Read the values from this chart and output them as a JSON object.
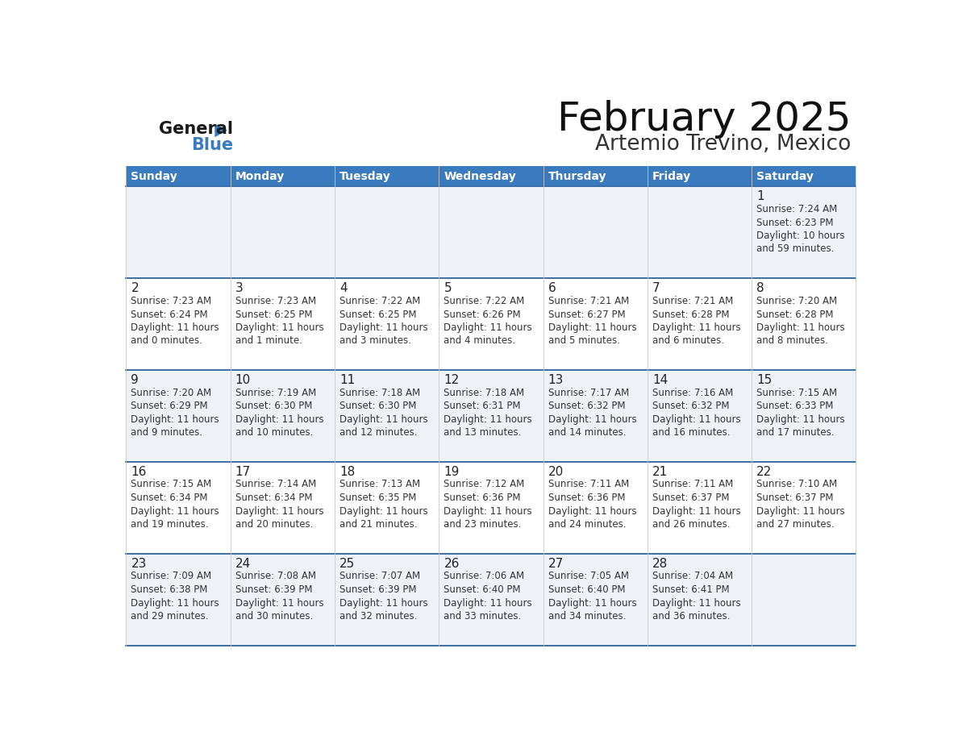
{
  "title": "February 2025",
  "subtitle": "Artemio Trevino, Mexico",
  "header_color": "#3a7abf",
  "header_text_color": "#ffffff",
  "row_bg_colors": [
    "#edf2f7",
    "#ffffff",
    "#edf2f7",
    "#ffffff",
    "#edf2f7"
  ],
  "border_color": "#3a6ea5",
  "day_headers": [
    "Sunday",
    "Monday",
    "Tuesday",
    "Wednesday",
    "Thursday",
    "Friday",
    "Saturday"
  ],
  "days": [
    {
      "day": 1,
      "col": 6,
      "row": 0,
      "sunrise": "7:24 AM",
      "sunset": "6:23 PM",
      "daylight_hrs": "10",
      "daylight_min": "59 minutes."
    },
    {
      "day": 2,
      "col": 0,
      "row": 1,
      "sunrise": "7:23 AM",
      "sunset": "6:24 PM",
      "daylight_hrs": "11",
      "daylight_min": "0 minutes."
    },
    {
      "day": 3,
      "col": 1,
      "row": 1,
      "sunrise": "7:23 AM",
      "sunset": "6:25 PM",
      "daylight_hrs": "11",
      "daylight_min": "1 minute."
    },
    {
      "day": 4,
      "col": 2,
      "row": 1,
      "sunrise": "7:22 AM",
      "sunset": "6:25 PM",
      "daylight_hrs": "11",
      "daylight_min": "3 minutes."
    },
    {
      "day": 5,
      "col": 3,
      "row": 1,
      "sunrise": "7:22 AM",
      "sunset": "6:26 PM",
      "daylight_hrs": "11",
      "daylight_min": "4 minutes."
    },
    {
      "day": 6,
      "col": 4,
      "row": 1,
      "sunrise": "7:21 AM",
      "sunset": "6:27 PM",
      "daylight_hrs": "11",
      "daylight_min": "5 minutes."
    },
    {
      "day": 7,
      "col": 5,
      "row": 1,
      "sunrise": "7:21 AM",
      "sunset": "6:28 PM",
      "daylight_hrs": "11",
      "daylight_min": "6 minutes."
    },
    {
      "day": 8,
      "col": 6,
      "row": 1,
      "sunrise": "7:20 AM",
      "sunset": "6:28 PM",
      "daylight_hrs": "11",
      "daylight_min": "8 minutes."
    },
    {
      "day": 9,
      "col": 0,
      "row": 2,
      "sunrise": "7:20 AM",
      "sunset": "6:29 PM",
      "daylight_hrs": "11",
      "daylight_min": "9 minutes."
    },
    {
      "day": 10,
      "col": 1,
      "row": 2,
      "sunrise": "7:19 AM",
      "sunset": "6:30 PM",
      "daylight_hrs": "11",
      "daylight_min": "10 minutes."
    },
    {
      "day": 11,
      "col": 2,
      "row": 2,
      "sunrise": "7:18 AM",
      "sunset": "6:30 PM",
      "daylight_hrs": "11",
      "daylight_min": "12 minutes."
    },
    {
      "day": 12,
      "col": 3,
      "row": 2,
      "sunrise": "7:18 AM",
      "sunset": "6:31 PM",
      "daylight_hrs": "11",
      "daylight_min": "13 minutes."
    },
    {
      "day": 13,
      "col": 4,
      "row": 2,
      "sunrise": "7:17 AM",
      "sunset": "6:32 PM",
      "daylight_hrs": "11",
      "daylight_min": "14 minutes."
    },
    {
      "day": 14,
      "col": 5,
      "row": 2,
      "sunrise": "7:16 AM",
      "sunset": "6:32 PM",
      "daylight_hrs": "11",
      "daylight_min": "16 minutes."
    },
    {
      "day": 15,
      "col": 6,
      "row": 2,
      "sunrise": "7:15 AM",
      "sunset": "6:33 PM",
      "daylight_hrs": "11",
      "daylight_min": "17 minutes."
    },
    {
      "day": 16,
      "col": 0,
      "row": 3,
      "sunrise": "7:15 AM",
      "sunset": "6:34 PM",
      "daylight_hrs": "11",
      "daylight_min": "19 minutes."
    },
    {
      "day": 17,
      "col": 1,
      "row": 3,
      "sunrise": "7:14 AM",
      "sunset": "6:34 PM",
      "daylight_hrs": "11",
      "daylight_min": "20 minutes."
    },
    {
      "day": 18,
      "col": 2,
      "row": 3,
      "sunrise": "7:13 AM",
      "sunset": "6:35 PM",
      "daylight_hrs": "11",
      "daylight_min": "21 minutes."
    },
    {
      "day": 19,
      "col": 3,
      "row": 3,
      "sunrise": "7:12 AM",
      "sunset": "6:36 PM",
      "daylight_hrs": "11",
      "daylight_min": "23 minutes."
    },
    {
      "day": 20,
      "col": 4,
      "row": 3,
      "sunrise": "7:11 AM",
      "sunset": "6:36 PM",
      "daylight_hrs": "11",
      "daylight_min": "24 minutes."
    },
    {
      "day": 21,
      "col": 5,
      "row": 3,
      "sunrise": "7:11 AM",
      "sunset": "6:37 PM",
      "daylight_hrs": "11",
      "daylight_min": "26 minutes."
    },
    {
      "day": 22,
      "col": 6,
      "row": 3,
      "sunrise": "7:10 AM",
      "sunset": "6:37 PM",
      "daylight_hrs": "11",
      "daylight_min": "27 minutes."
    },
    {
      "day": 23,
      "col": 0,
      "row": 4,
      "sunrise": "7:09 AM",
      "sunset": "6:38 PM",
      "daylight_hrs": "11",
      "daylight_min": "29 minutes."
    },
    {
      "day": 24,
      "col": 1,
      "row": 4,
      "sunrise": "7:08 AM",
      "sunset": "6:39 PM",
      "daylight_hrs": "11",
      "daylight_min": "30 minutes."
    },
    {
      "day": 25,
      "col": 2,
      "row": 4,
      "sunrise": "7:07 AM",
      "sunset": "6:39 PM",
      "daylight_hrs": "11",
      "daylight_min": "32 minutes."
    },
    {
      "day": 26,
      "col": 3,
      "row": 4,
      "sunrise": "7:06 AM",
      "sunset": "6:40 PM",
      "daylight_hrs": "11",
      "daylight_min": "33 minutes."
    },
    {
      "day": 27,
      "col": 4,
      "row": 4,
      "sunrise": "7:05 AM",
      "sunset": "6:40 PM",
      "daylight_hrs": "11",
      "daylight_min": "34 minutes."
    },
    {
      "day": 28,
      "col": 5,
      "row": 4,
      "sunrise": "7:04 AM",
      "sunset": "6:41 PM",
      "daylight_hrs": "11",
      "daylight_min": "36 minutes."
    }
  ]
}
